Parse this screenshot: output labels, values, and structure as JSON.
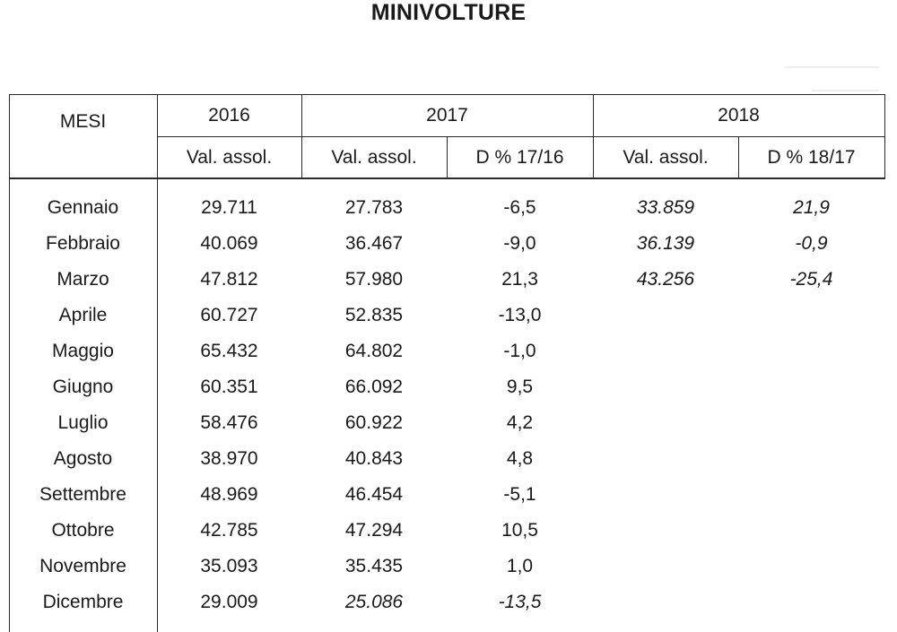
{
  "title": "MINIVOLTURE",
  "header": {
    "mesi": "MESI",
    "years": [
      "2016",
      "2017",
      "2018"
    ],
    "subheaders": [
      "Val. assol.",
      "Val. assol.",
      "D % 17/16",
      "Val. assol.",
      "D % 18/17"
    ]
  },
  "rows": [
    {
      "mese": "Gennaio",
      "v2016": "29.711",
      "v2017": "27.783",
      "d1716": "-6,5",
      "v2018": "33.859",
      "d1817": "21,9"
    },
    {
      "mese": "Febbraio",
      "v2016": "40.069",
      "v2017": "36.467",
      "d1716": "-9,0",
      "v2018": "36.139",
      "d1817": "-0,9"
    },
    {
      "mese": "Marzo",
      "v2016": "47.812",
      "v2017": "57.980",
      "d1716": "21,3",
      "v2018": "43.256",
      "d1817": "-25,4"
    },
    {
      "mese": "Aprile",
      "v2016": "60.727",
      "v2017": "52.835",
      "d1716": "-13,0",
      "v2018": "",
      "d1817": ""
    },
    {
      "mese": "Maggio",
      "v2016": "65.432",
      "v2017": "64.802",
      "d1716": "-1,0",
      "v2018": "",
      "d1817": ""
    },
    {
      "mese": "Giugno",
      "v2016": "60.351",
      "v2017": "66.092",
      "d1716": "9,5",
      "v2018": "",
      "d1817": ""
    },
    {
      "mese": "Luglio",
      "v2016": "58.476",
      "v2017": "60.922",
      "d1716": "4,2",
      "v2018": "",
      "d1817": ""
    },
    {
      "mese": "Agosto",
      "v2016": "38.970",
      "v2017": "40.843",
      "d1716": "4,8",
      "v2018": "",
      "d1817": ""
    },
    {
      "mese": "Settembre",
      "v2016": "48.969",
      "v2017": "46.454",
      "d1716": "-5,1",
      "v2018": "",
      "d1817": ""
    },
    {
      "mese": "Ottobre",
      "v2016": "42.785",
      "v2017": "47.294",
      "d1716": "10,5",
      "v2018": "",
      "d1817": ""
    },
    {
      "mese": "Novembre",
      "v2016": "35.093",
      "v2017": "35.435",
      "d1716": "1,0",
      "v2018": "",
      "d1817": ""
    },
    {
      "mese": "Dicembre",
      "v2016": "29.009",
      "v2017": "25.086",
      "d1716": "-13,5",
      "v2018": "",
      "d1817": "",
      "italic_2017": true
    }
  ],
  "italic_2018": true,
  "line_color": "#2a2a2a"
}
